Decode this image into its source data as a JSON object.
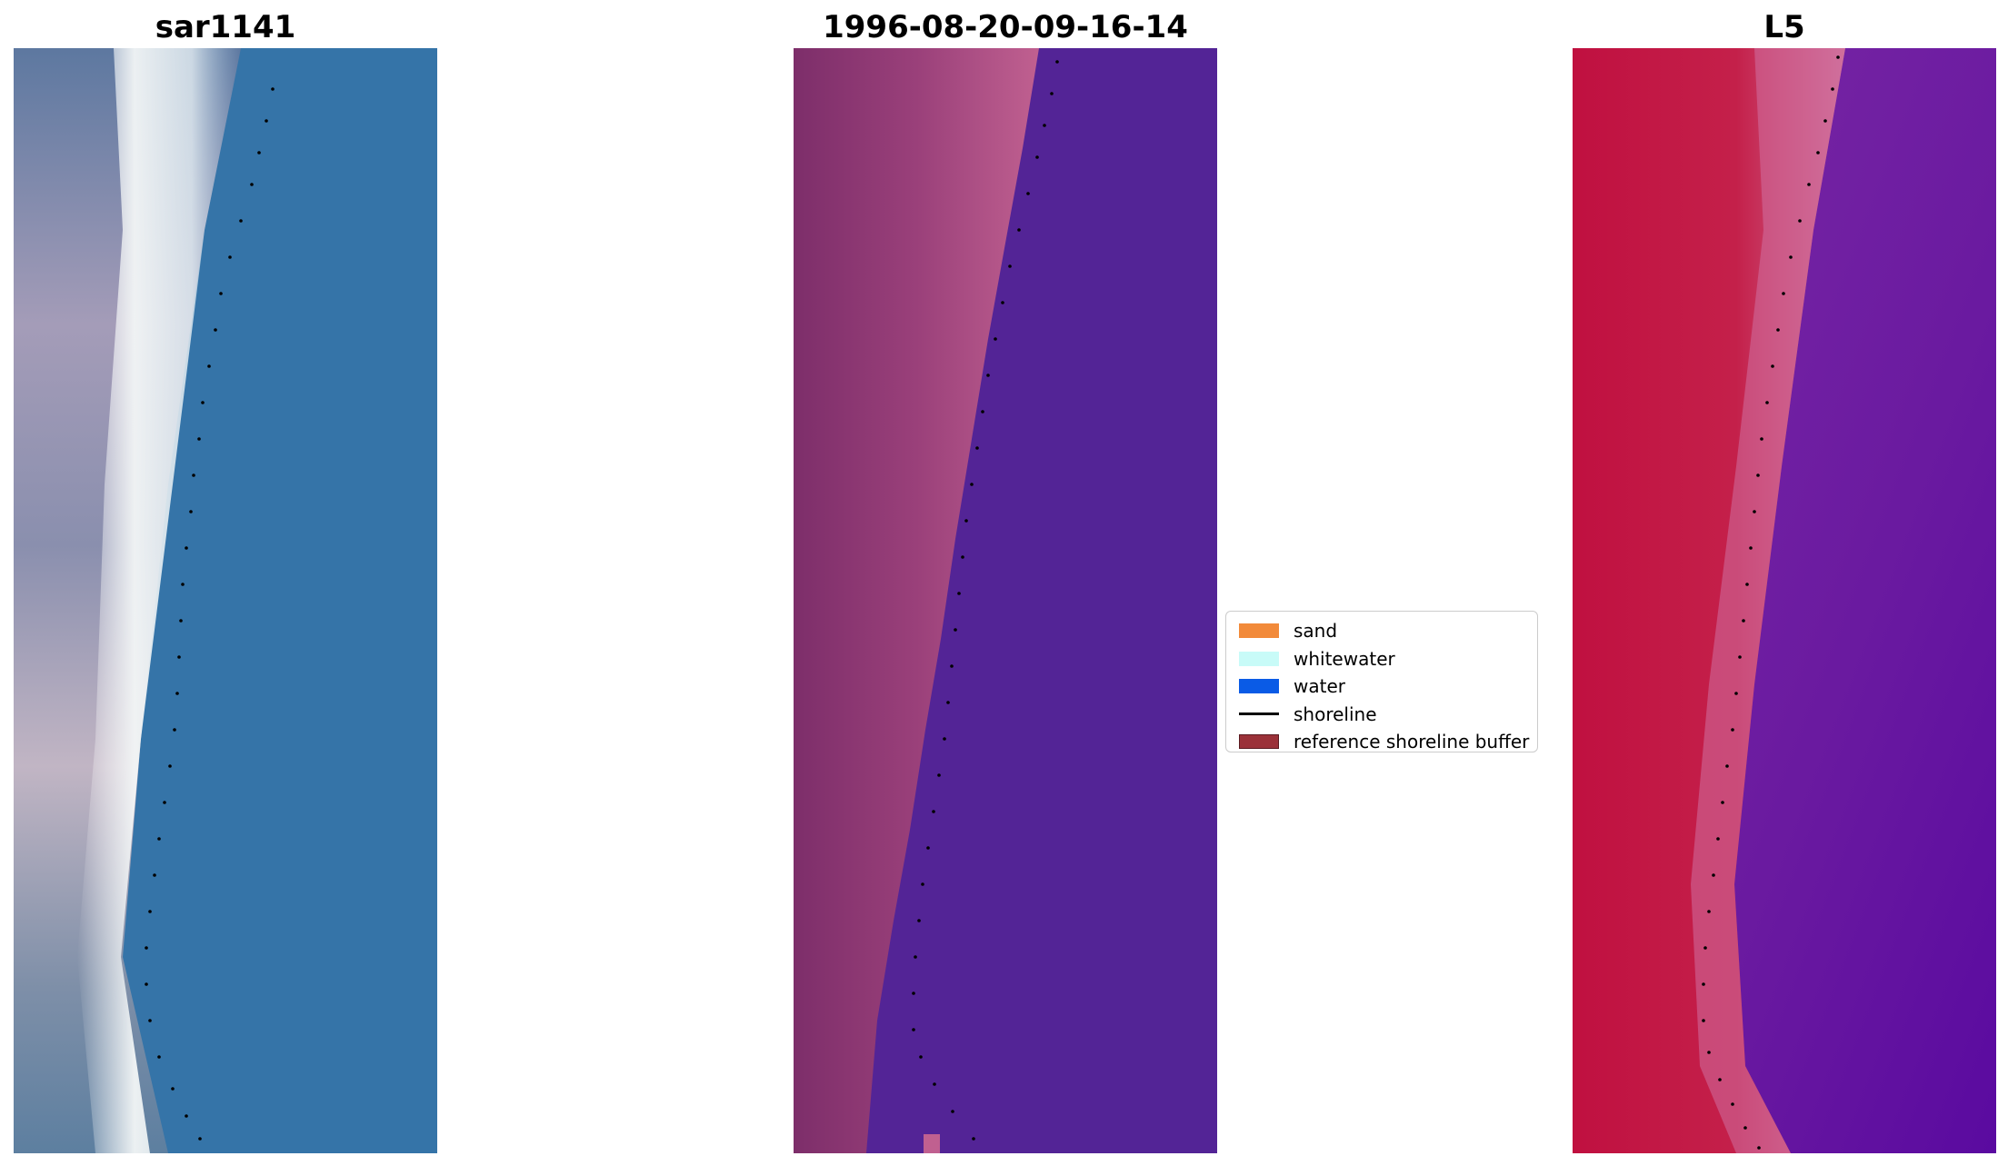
{
  "panels": [
    {
      "title": "sar1141"
    },
    {
      "title": "1996-08-20-09-16-14"
    },
    {
      "title": "L5"
    }
  ],
  "legend": {
    "items": [
      {
        "label": "sand",
        "color": "#f28a3a",
        "kind": "patch"
      },
      {
        "label": "whitewater",
        "color": "#c8fbf8",
        "kind": "patch"
      },
      {
        "label": "water",
        "color": "#0a5be6",
        "kind": "patch"
      },
      {
        "label": "shoreline",
        "color": "#000000",
        "kind": "line"
      },
      {
        "label": "reference shoreline buffer",
        "color": "#9b3139",
        "kind": "patch"
      }
    ]
  },
  "colors": {
    "rgb_water": "#3574a8",
    "rgb_land": "#6f87a8",
    "rgb_whitewater": "#e8eef0",
    "class_water": "#532496",
    "class_land_dark": "#7d2e6a",
    "class_land_light": "#c06090",
    "false_color_land": "#c01040",
    "false_color_water": "#6a1aa0"
  }
}
